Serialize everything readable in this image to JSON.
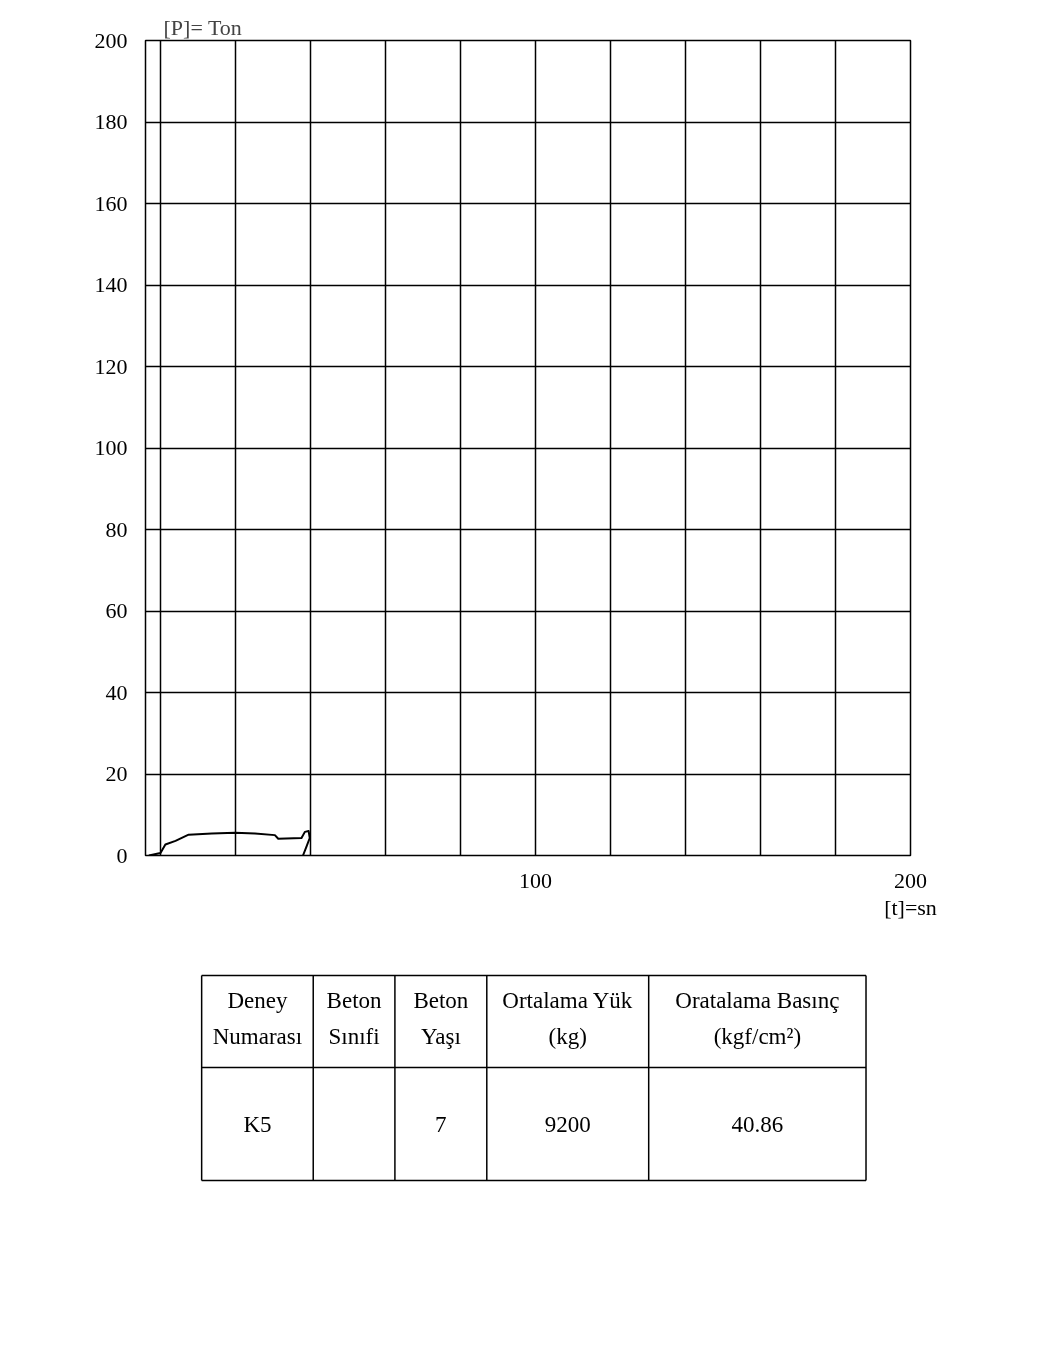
{
  "chart_data": {
    "type": "line",
    "ylabel": "[P]= Ton",
    "xlabel": "[t]=sn",
    "x": [
      -3.1,
      0,
      1.3,
      4,
      7.5,
      13.7,
      19.9,
      25.2,
      30.5,
      31.4,
      37.6,
      38.5,
      39.5,
      39.8,
      38.9,
      38
    ],
    "series": [
      {
        "color": "#000000",
        "values": [
          0,
          0.6,
          2.7,
          3.6,
          5.1,
          5.4,
          5.6,
          5.4,
          5.0,
          4.1,
          4.3,
          5.8,
          6.0,
          4.3,
          2.1,
          0
        ]
      }
    ],
    "xlim": [
      -4,
      200
    ],
    "xticks": [
      {
        "value": 0,
        "label": null
      },
      {
        "value": 20,
        "label": null
      },
      {
        "value": 40,
        "label": null
      },
      {
        "value": 60,
        "label": null
      },
      {
        "value": 80,
        "label": null
      },
      100,
      {
        "value": 120,
        "label": null
      },
      {
        "value": 140,
        "label": null
      },
      {
        "value": 160,
        "label": null
      },
      {
        "value": 180,
        "label": null
      },
      200
    ],
    "ylim": [
      0,
      200
    ],
    "yticks": [
      0,
      20,
      40,
      60,
      80,
      100,
      120,
      140,
      160,
      180,
      200
    ],
    "grid": true,
    "line_style": "solid",
    "marker": "none",
    "annotations": [
      "Deney\nNumarası",
      "Beton\nSınıfi",
      "Beton\nYaşı",
      "Ortalama Yük\n(kg)",
      "Oratalama Basınç\n(kgf/cm²)",
      "K5",
      "7",
      "9200",
      "40.86"
    ]
  }
}
